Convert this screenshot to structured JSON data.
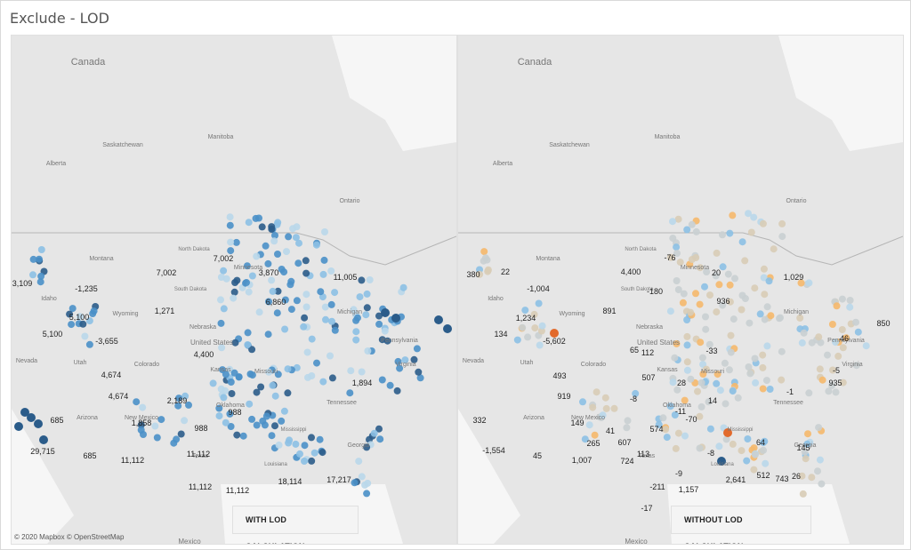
{
  "title": "Exclude - LOD",
  "colors": {
    "dark_blue": "#2b5c8a",
    "mid_blue": "#4a90c8",
    "light_blue": "#8cc0e4",
    "pale_blue": "#b9d7ea",
    "grey": "#c9cfd2",
    "beige": "#d8ccb6",
    "light_orange": "#f5b86c",
    "orange": "#f0a04c",
    "dark_orange": "#e26a2c"
  },
  "region_labels": [
    {
      "text": "Canada"
    },
    {
      "text": "Saskatchewan"
    },
    {
      "text": "Manitoba"
    },
    {
      "text": "Alberta"
    },
    {
      "text": "Ontario"
    },
    {
      "text": "Montana"
    },
    {
      "text": "North Dakota"
    },
    {
      "text": "South Dakota"
    },
    {
      "text": "Wyoming"
    },
    {
      "text": "Idaho"
    },
    {
      "text": "Nebraska"
    },
    {
      "text": "Nevada"
    },
    {
      "text": "Utah"
    },
    {
      "text": "Colorado"
    },
    {
      "text": "Minnesota"
    },
    {
      "text": "Missouri"
    },
    {
      "text": "United States"
    },
    {
      "text": "Kansas"
    },
    {
      "text": "Oklahoma"
    },
    {
      "text": "Arizona"
    },
    {
      "text": "New Mexico"
    },
    {
      "text": "Texas"
    },
    {
      "text": "Louisiana"
    },
    {
      "text": "Mississippi"
    },
    {
      "text": "Georgia"
    },
    {
      "text": "Michigan"
    },
    {
      "text": "Pennsylvania"
    },
    {
      "text": "Virginia"
    },
    {
      "text": "Tennessee"
    },
    {
      "text": "Mexico"
    }
  ],
  "left_panel": {
    "badge": "WITH LOD CALCULATION",
    "credit": "© 2020 Mapbox © OpenStreetMap",
    "values": [
      "3,109",
      "-1,235",
      "7,002",
      "7,002",
      "3,870",
      "11,005",
      "5,100",
      "1,271",
      "6,860",
      "5,100",
      "-3,655",
      "4,400",
      "4,674",
      "1,894",
      "4,674",
      "2,189",
      "988",
      "685",
      "1,858",
      "988",
      "29,715",
      "685",
      "11,112",
      "11,112",
      "11,112",
      "11,112",
      "18,114",
      "17,217"
    ]
  },
  "right_panel": {
    "badge": "WITHOUT LOD CALCULATION",
    "values": [
      "380",
      "22",
      "-1,004",
      "4,400",
      "-76",
      "20",
      "1,029",
      "-180",
      "936",
      "1,234",
      "891",
      "134",
      "-5,602",
      "65",
      "112",
      "-33",
      "46",
      "850",
      "493",
      "507",
      "28",
      "-5",
      "919",
      "935",
      "-8",
      "14",
      "-1",
      "-11",
      "-70",
      "332",
      "149",
      "41",
      "574",
      "64",
      "-1,554",
      "45",
      "265",
      "607",
      "113",
      "-8",
      "145",
      "1,007",
      "724",
      "-9",
      "512",
      "743",
      "26",
      "-211",
      "1,157",
      "2,641",
      "-17"
    ]
  }
}
